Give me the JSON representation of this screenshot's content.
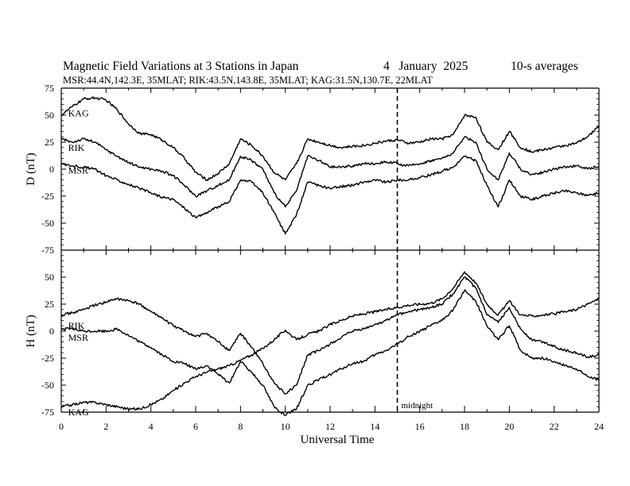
{
  "header": {
    "title": "Magnetic Field Variations at 3 Stations in Japan",
    "date": "4   January  2025",
    "averaging": "10-s averages",
    "stations": "MSR:44.4N,142.3E, 35MLAT;  RIK:43.5N,143.8E, 35MLAT;  KAG:31.5N,130.7E, 22MLAT"
  },
  "x_axis": {
    "label": "Universal Time",
    "range": [
      0,
      24
    ],
    "ticks": [
      "0",
      "2",
      "4",
      "6",
      "8",
      "10",
      "12",
      "14",
      "16",
      "18",
      "20",
      "22",
      "24"
    ]
  },
  "annotation": {
    "midnight_label": "midnight",
    "midnight_ut": 15
  },
  "chart_data": [
    {
      "type": "line",
      "ylabel": "D (nT)",
      "ylim": [
        -75,
        75
      ],
      "yticks": [
        "75",
        "50",
        "25",
        "0",
        "-25",
        "-50",
        "-75"
      ],
      "x": [
        0,
        0.5,
        1,
        1.5,
        2,
        2.5,
        3,
        3.5,
        4,
        4.5,
        5,
        5.5,
        6,
        6.5,
        7,
        7.5,
        8,
        8.5,
        9,
        9.5,
        10,
        10.5,
        11,
        11.5,
        12,
        12.5,
        13,
        13.5,
        14,
        14.5,
        15,
        15.5,
        16,
        16.5,
        17,
        17.5,
        18,
        18.5,
        19,
        19.5,
        20,
        20.5,
        21,
        21.5,
        22,
        22.5,
        23,
        23.5,
        24
      ],
      "series": [
        {
          "name": "KAG",
          "label_x": 0.2,
          "label_y": 52,
          "values": [
            50,
            58,
            65,
            66,
            64,
            55,
            42,
            33,
            32,
            27,
            20,
            10,
            -3,
            -10,
            -4,
            5,
            28,
            22,
            12,
            -3,
            -10,
            5,
            28,
            25,
            22,
            20,
            21,
            22,
            24,
            26,
            27,
            24,
            25,
            28,
            28,
            32,
            50,
            48,
            25,
            18,
            35,
            20,
            16,
            18,
            20,
            22,
            24,
            30,
            40
          ]
        },
        {
          "name": "RIK",
          "label_x": 0.2,
          "label_y": 20,
          "values": [
            28,
            25,
            28,
            25,
            18,
            12,
            6,
            2,
            0,
            -2,
            -6,
            -15,
            -25,
            -20,
            -15,
            -10,
            12,
            8,
            0,
            -22,
            -35,
            -20,
            12,
            8,
            2,
            2,
            3,
            5,
            5,
            7,
            5,
            3,
            5,
            8,
            10,
            15,
            30,
            25,
            0,
            -10,
            15,
            0,
            -5,
            -3,
            0,
            2,
            3,
            0,
            3
          ]
        },
        {
          "name": "MSR",
          "label_x": 0.2,
          "label_y": -1,
          "values": [
            5,
            3,
            2,
            0,
            -6,
            -10,
            -14,
            -18,
            -22,
            -26,
            -28,
            -36,
            -45,
            -40,
            -35,
            -30,
            -10,
            -12,
            -22,
            -40,
            -60,
            -42,
            -12,
            -15,
            -18,
            -16,
            -15,
            -12,
            -10,
            -12,
            -10,
            -10,
            -8,
            -5,
            -2,
            2,
            12,
            8,
            -15,
            -35,
            -10,
            -25,
            -28,
            -25,
            -22,
            -20,
            -22,
            -24,
            -22
          ]
        }
      ]
    },
    {
      "type": "line",
      "ylabel": "H (nT)",
      "ylim": [
        -75,
        75
      ],
      "yticks": [
        "75",
        "50",
        "25",
        "0",
        "-25",
        "-50",
        "-75"
      ],
      "x": [
        0,
        0.5,
        1,
        1.5,
        2,
        2.5,
        3,
        3.5,
        4,
        4.5,
        5,
        5.5,
        6,
        6.5,
        7,
        7.5,
        8,
        8.5,
        9,
        9.5,
        10,
        10.5,
        11,
        11.5,
        12,
        12.5,
        13,
        13.5,
        14,
        14.5,
        15,
        15.5,
        16,
        16.5,
        17,
        17.5,
        18,
        18.5,
        19,
        19.5,
        20,
        20.5,
        21,
        21.5,
        22,
        22.5,
        23,
        23.5,
        24
      ],
      "series": [
        {
          "name": "KAG",
          "label_x": 0.2,
          "label_y": -75,
          "values": [
            -70,
            -68,
            -66,
            -66,
            -68,
            -70,
            -72,
            -72,
            -68,
            -63,
            -55,
            -48,
            -42,
            -38,
            -35,
            -32,
            -27,
            -22,
            -16,
            -8,
            1,
            -8,
            -3,
            0,
            6,
            10,
            14,
            16,
            18,
            20,
            22,
            24,
            25,
            26,
            30,
            40,
            55,
            45,
            25,
            15,
            28,
            15,
            14,
            15,
            16,
            18,
            20,
            25,
            30
          ]
        },
        {
          "name": "RIK",
          "label_x": 0.2,
          "label_y": 5,
          "values": [
            15,
            17,
            20,
            24,
            27,
            30,
            28,
            25,
            18,
            12,
            5,
            0,
            -5,
            -2,
            -10,
            -18,
            -2,
            -15,
            -30,
            -48,
            -58,
            -50,
            -22,
            -18,
            -12,
            -6,
            0,
            2,
            6,
            10,
            15,
            18,
            20,
            22,
            25,
            35,
            50,
            40,
            15,
            8,
            22,
            2,
            -8,
            -10,
            -14,
            -18,
            -20,
            -24,
            -22
          ]
        },
        {
          "name": "MSR",
          "label_x": 0.2,
          "label_y": -6,
          "values": [
            2,
            2,
            0,
            0,
            0,
            2,
            -4,
            -10,
            -15,
            -22,
            -28,
            -30,
            -35,
            -32,
            -40,
            -48,
            -28,
            -38,
            -50,
            -70,
            -78,
            -72,
            -50,
            -45,
            -40,
            -35,
            -30,
            -28,
            -22,
            -18,
            -12,
            -5,
            0,
            5,
            10,
            20,
            38,
            28,
            5,
            -8,
            5,
            -18,
            -25,
            -25,
            -28,
            -32,
            -35,
            -42,
            -45
          ]
        }
      ]
    }
  ]
}
